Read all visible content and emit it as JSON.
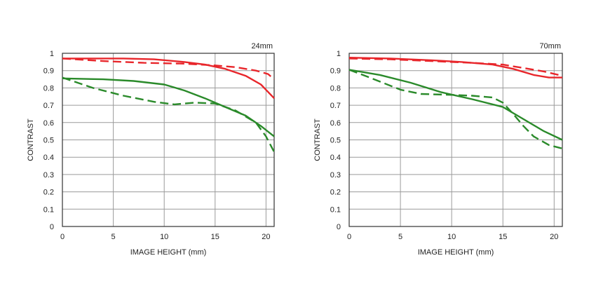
{
  "chart_data": [
    {
      "type": "line",
      "label": "24mm",
      "xlabel": "IMAGE HEIGHT (mm)",
      "ylabel": "CONTRAST",
      "xlim": [
        0,
        20.8
      ],
      "ylim": [
        0,
        1
      ],
      "xticks": [
        "0",
        "5",
        "10",
        "15",
        "20"
      ],
      "yticks": [
        "0",
        "0.1",
        "0.2",
        "0.3",
        "0.4",
        "0.5",
        "0.6",
        "0.7",
        "0.8",
        "0.9",
        "1"
      ],
      "grid": true,
      "series": [
        {
          "color": "#e8262b",
          "dash": false,
          "points": [
            [
              0,
              0.97
            ],
            [
              3,
              0.97
            ],
            [
              6,
              0.97
            ],
            [
              9,
              0.965
            ],
            [
              12,
              0.95
            ],
            [
              14,
              0.935
            ],
            [
              16,
              0.91
            ],
            [
              18,
              0.87
            ],
            [
              19.5,
              0.82
            ],
            [
              20.8,
              0.74
            ]
          ]
        },
        {
          "color": "#e8262b",
          "dash": true,
          "points": [
            [
              0,
              0.97
            ],
            [
              4,
              0.955
            ],
            [
              8,
              0.945
            ],
            [
              12,
              0.94
            ],
            [
              15,
              0.93
            ],
            [
              17,
              0.92
            ],
            [
              19,
              0.9
            ],
            [
              20.2,
              0.88
            ],
            [
              20.8,
              0.85
            ]
          ]
        },
        {
          "color": "#2a8a2a",
          "dash": false,
          "points": [
            [
              0,
              0.855
            ],
            [
              4,
              0.85
            ],
            [
              7,
              0.84
            ],
            [
              10,
              0.82
            ],
            [
              12,
              0.785
            ],
            [
              14,
              0.74
            ],
            [
              16,
              0.69
            ],
            [
              18,
              0.64
            ],
            [
              19.5,
              0.58
            ],
            [
              20.8,
              0.52
            ]
          ]
        },
        {
          "color": "#2a8a2a",
          "dash": true,
          "points": [
            [
              0,
              0.86
            ],
            [
              3,
              0.8
            ],
            [
              6,
              0.755
            ],
            [
              9,
              0.72
            ],
            [
              11,
              0.705
            ],
            [
              13,
              0.715
            ],
            [
              15,
              0.71
            ],
            [
              17,
              0.67
            ],
            [
              19,
              0.6
            ],
            [
              20,
              0.52
            ],
            [
              20.8,
              0.43
            ]
          ]
        }
      ]
    },
    {
      "type": "line",
      "label": "70mm",
      "xlabel": "IMAGE HEIGHT (mm)",
      "ylabel": "CONTRAST",
      "xlim": [
        0,
        20.8
      ],
      "ylim": [
        0,
        1
      ],
      "xticks": [
        "0",
        "5",
        "10",
        "15",
        "20"
      ],
      "yticks": [
        "0",
        "0.1",
        "0.2",
        "0.3",
        "0.4",
        "0.5",
        "0.6",
        "0.7",
        "0.8",
        "0.9",
        "1"
      ],
      "grid": true,
      "series": [
        {
          "color": "#e8262b",
          "dash": false,
          "points": [
            [
              0,
              0.975
            ],
            [
              4,
              0.97
            ],
            [
              8,
              0.96
            ],
            [
              11,
              0.95
            ],
            [
              14,
              0.935
            ],
            [
              16,
              0.91
            ],
            [
              18,
              0.875
            ],
            [
              19.5,
              0.86
            ],
            [
              20.8,
              0.86
            ]
          ]
        },
        {
          "color": "#e8262b",
          "dash": true,
          "points": [
            [
              0,
              0.97
            ],
            [
              4,
              0.965
            ],
            [
              8,
              0.955
            ],
            [
              12,
              0.945
            ],
            [
              15,
              0.935
            ],
            [
              17,
              0.915
            ],
            [
              19,
              0.895
            ],
            [
              20.8,
              0.87
            ]
          ]
        },
        {
          "color": "#2a8a2a",
          "dash": false,
          "points": [
            [
              0,
              0.905
            ],
            [
              3,
              0.875
            ],
            [
              6,
              0.83
            ],
            [
              9,
              0.775
            ],
            [
              12,
              0.735
            ],
            [
              15,
              0.69
            ],
            [
              17,
              0.62
            ],
            [
              19,
              0.55
            ],
            [
              20.8,
              0.5
            ]
          ]
        },
        {
          "color": "#2a8a2a",
          "dash": true,
          "points": [
            [
              0,
              0.905
            ],
            [
              2,
              0.86
            ],
            [
              5,
              0.79
            ],
            [
              7,
              0.765
            ],
            [
              10,
              0.76
            ],
            [
              12,
              0.755
            ],
            [
              14,
              0.745
            ],
            [
              15,
              0.715
            ],
            [
              16,
              0.65
            ],
            [
              17,
              0.58
            ],
            [
              18,
              0.52
            ],
            [
              19.5,
              0.47
            ],
            [
              20.8,
              0.45
            ]
          ]
        }
      ]
    }
  ]
}
